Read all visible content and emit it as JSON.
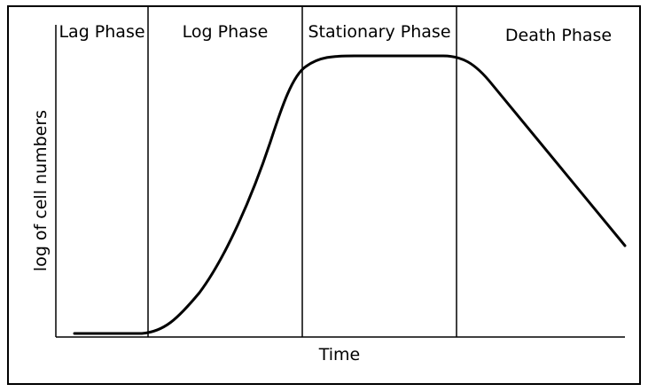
{
  "diagram": {
    "phases": [
      {
        "label": "Lag Phase"
      },
      {
        "label": "Log Phase"
      },
      {
        "label": "Stationary Phase"
      },
      {
        "label": "Death Phase"
      }
    ],
    "x_axis_label": "Time",
    "y_axis_label": "log of cell numbers",
    "colors": {
      "line": "#000000",
      "background": "#ffffff"
    }
  }
}
